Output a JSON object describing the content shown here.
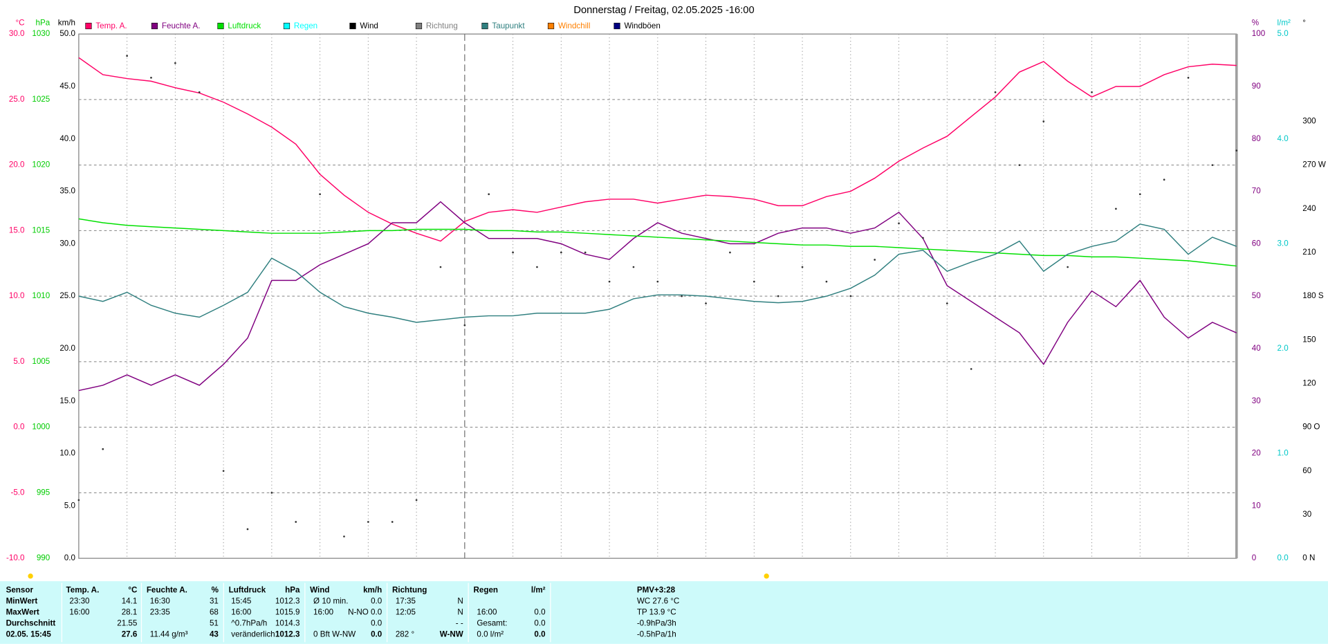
{
  "chart_data": {
    "type": "line",
    "title": "Donnerstag / Freitag, 02.05.2025  -16:00",
    "grid": true,
    "axes": [
      {
        "title": "°C",
        "color": "#ff0066",
        "lim": [
          -10,
          30
        ],
        "ticks": [
          {
            "value": -10,
            "label": "-10.0"
          },
          {
            "value": -5,
            "label": "-5.0"
          },
          {
            "value": 0,
            "label": "0.0"
          },
          {
            "value": 5,
            "label": "5.0"
          },
          {
            "value": 10,
            "label": "10.0"
          },
          {
            "value": 15,
            "label": "15.0"
          },
          {
            "value": 20,
            "label": "20.0"
          },
          {
            "value": 25,
            "label": "25.0"
          },
          {
            "value": 30,
            "label": "30.0"
          }
        ]
      },
      {
        "title": "hPa",
        "color": "#00cc00",
        "lim": [
          990,
          1030
        ],
        "ticks": [
          990,
          995,
          1000,
          1005,
          1010,
          1015,
          1020,
          1025,
          1030
        ]
      },
      {
        "title": "km/h",
        "color": "#000000",
        "lim": [
          0,
          50
        ],
        "ticks": [
          {
            "value": 0,
            "label": "0.0"
          },
          {
            "value": 5,
            "label": "5.0"
          },
          {
            "value": 10,
            "label": "10.0"
          },
          {
            "value": 15,
            "label": "15.0"
          },
          {
            "value": 20,
            "label": "20.0"
          },
          {
            "value": 25,
            "label": "25.0"
          },
          {
            "value": 30,
            "label": "30.0"
          },
          {
            "value": 35,
            "label": "35.0"
          },
          {
            "value": 40,
            "label": "40.0"
          },
          {
            "value": 45,
            "label": "45.0"
          },
          {
            "value": 50,
            "label": "50.0"
          }
        ]
      },
      {
        "title": "%",
        "color": "#800080",
        "lim": [
          0,
          100
        ],
        "ticks": [
          0,
          10,
          20,
          30,
          40,
          50,
          60,
          70,
          80,
          90,
          100
        ]
      },
      {
        "title": "l/m²",
        "color": "#00c8c8",
        "lim": [
          0,
          5
        ],
        "ticks": [
          {
            "value": 0,
            "label": "0.0"
          },
          {
            "value": 1,
            "label": "1.0"
          },
          {
            "value": 2,
            "label": "2.0"
          },
          {
            "value": 3,
            "label": "3.0"
          },
          {
            "value": 4,
            "label": "4.0"
          },
          {
            "value": 5,
            "label": "5.0"
          }
        ]
      },
      {
        "title": "°",
        "color": "#000000",
        "lim": [
          0,
          360
        ],
        "ticks": [
          {
            "value": 0,
            "label": "0 N"
          },
          30,
          60,
          {
            "value": 90,
            "label": "90 O"
          },
          120,
          150,
          {
            "value": 180,
            "label": "180 S"
          },
          210,
          240,
          {
            "value": 270,
            "label": "270 W"
          },
          300
        ]
      }
    ],
    "series": [
      {
        "name": "Temp. A.",
        "color": "#ff0066",
        "axis": 0,
        "style": "line",
        "values": [
          28.2,
          26.9,
          26.6,
          26.4,
          25.9,
          25.5,
          24.8,
          23.9,
          22.9,
          21.6,
          19.3,
          17.7,
          16.4,
          15.5,
          14.8,
          14.2,
          15.7,
          16.4,
          16.6,
          16.4,
          16.8,
          17.2,
          17.4,
          17.4,
          17.1,
          17.4,
          17.7,
          17.6,
          17.4,
          16.9,
          16.9,
          17.6,
          18.0,
          19.0,
          20.3,
          21.3,
          22.2,
          23.7,
          25.2,
          27.1,
          27.9,
          26.4,
          25.2,
          26.0,
          26.0,
          26.9,
          27.5,
          27.7,
          27.6
        ]
      },
      {
        "name": "Feuchte A.",
        "color": "#800080",
        "axis": 3,
        "style": "line",
        "values": [
          32,
          33,
          35,
          33,
          35,
          33,
          37,
          42,
          53,
          53,
          56,
          58,
          60,
          64,
          64,
          68,
          64,
          61,
          61,
          61,
          60,
          58,
          57,
          61,
          64,
          62,
          61,
          60,
          60,
          62,
          63,
          63,
          62,
          63,
          66,
          61,
          52,
          49,
          46,
          43,
          37,
          45,
          51,
          48,
          53,
          46,
          42,
          45,
          43
        ]
      },
      {
        "name": "Luftdruck",
        "color": "#00e000",
        "axis": 1,
        "style": "line",
        "values": [
          1015.9,
          1015.6,
          1015.4,
          1015.3,
          1015.2,
          1015.1,
          1015.0,
          1014.9,
          1014.8,
          1014.8,
          1014.8,
          1014.9,
          1015.0,
          1015.0,
          1015.1,
          1015.1,
          1015.1,
          1015.0,
          1015.0,
          1014.9,
          1014.9,
          1014.8,
          1014.7,
          1014.6,
          1014.5,
          1014.4,
          1014.3,
          1014.2,
          1014.1,
          1014.0,
          1013.9,
          1013.9,
          1013.8,
          1013.8,
          1013.7,
          1013.6,
          1013.5,
          1013.4,
          1013.3,
          1013.2,
          1013.1,
          1013.1,
          1013.0,
          1013.0,
          1012.9,
          1012.8,
          1012.7,
          1012.5,
          1012.3
        ]
      },
      {
        "name": "Regen",
        "color": "#00ffff"
      },
      {
        "name": "Wind",
        "color": "#000000"
      },
      {
        "name": "Richtung",
        "color": "#808080",
        "axis": 5,
        "style": "dots",
        "values": [
          40,
          75,
          345,
          330,
          340,
          320,
          60,
          20,
          45,
          25,
          250,
          15,
          25,
          25,
          40,
          200,
          160,
          250,
          210,
          200,
          210,
          210,
          190,
          200,
          190,
          180,
          175,
          210,
          190,
          180,
          200,
          190,
          180,
          205,
          230,
          220,
          175,
          130,
          320,
          270,
          300,
          200,
          320,
          240,
          250,
          260,
          330,
          270,
          280
        ]
      },
      {
        "name": "Taupunkt",
        "color": "#2f7f7f",
        "axis": 0,
        "style": "line",
        "values": [
          10.0,
          9.6,
          10.3,
          9.3,
          8.7,
          8.4,
          9.3,
          10.3,
          12.9,
          11.9,
          10.3,
          9.2,
          8.7,
          8.4,
          8.0,
          8.2,
          8.4,
          8.5,
          8.5,
          8.7,
          8.7,
          8.7,
          9.0,
          9.8,
          10.1,
          10.1,
          10.0,
          9.8,
          9.6,
          9.5,
          9.6,
          10.0,
          10.6,
          11.6,
          13.2,
          13.5,
          11.9,
          12.6,
          13.2,
          14.2,
          11.9,
          13.2,
          13.8,
          14.2,
          15.5,
          15.1,
          13.2,
          14.5,
          13.8
        ]
      },
      {
        "name": "Windchill",
        "color": "#ff8000"
      },
      {
        "name": "Windböen",
        "color": "#000080"
      }
    ]
  },
  "table": {
    "groups": [
      {
        "header": "Sensor",
        "rows": [
          "MinWert",
          "MaxWert",
          "Durchschnitt",
          "02.05. 15:45"
        ]
      },
      {
        "header": "Temp. A.",
        "unit": "°C",
        "rows": [
          [
            "23:30",
            "14.1"
          ],
          [
            "16:00",
            "28.1"
          ],
          [
            null,
            "21.55"
          ],
          [
            null,
            "27.6"
          ]
        ]
      },
      {
        "header": "Feuchte A.",
        "unit": "%",
        "rows": [
          [
            "16:30",
            "31"
          ],
          [
            "23:35",
            "68"
          ],
          [
            null,
            "51"
          ],
          [
            "11.44 g/m³",
            "43"
          ]
        ]
      },
      {
        "header": "Luftdruck",
        "unit": "hPa",
        "rows": [
          [
            "15:45",
            "1012.3"
          ],
          [
            "16:00",
            "1015.9"
          ],
          [
            "^0.7hPa/h",
            "1014.3"
          ],
          [
            "veränderlich",
            "1012.3"
          ]
        ]
      },
      {
        "header": "Wind",
        "unit": "km/h",
        "rows": [
          [
            "Ø 10 min.",
            "0.0"
          ],
          [
            "16:00",
            "N-NO 0.0"
          ],
          [
            null,
            "0.0"
          ],
          [
            "0 Bft W-NW",
            "0.0"
          ]
        ]
      },
      {
        "header": "Richtung",
        "rows": [
          [
            "17:35",
            "N"
          ],
          [
            "12:05",
            "N"
          ],
          [
            null,
            "- -"
          ],
          [
            "282 °",
            "W-NW"
          ]
        ]
      },
      {
        "header": "Regen",
        "unit": "l/m²",
        "rows": [
          [
            null,
            null
          ],
          [
            "16:00",
            "0.0"
          ],
          [
            "Gesamt:",
            "0.0"
          ],
          [
            "0.0 l/m²",
            "0.0"
          ]
        ]
      }
    ],
    "extra": [
      "PMV+3:28",
      "WC 27.6 °C",
      "TP 13.9 °C",
      "-0.9hPa/3h",
      "-0.5hPa/1h"
    ]
  }
}
